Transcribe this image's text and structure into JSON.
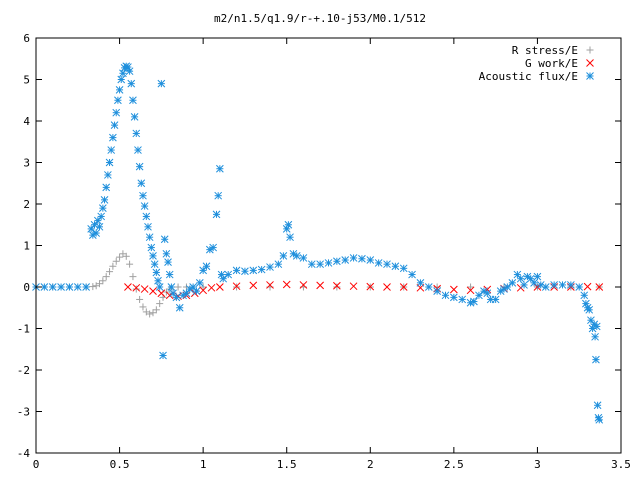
{
  "chart_data": {
    "type": "scatter",
    "title": "m2/n1.5/q1.9/r-+.10-j53/M0.1/512",
    "xlabel": "",
    "ylabel": "",
    "xlim": [
      0,
      3.5
    ],
    "ylim": [
      -4,
      6
    ],
    "x_ticks": [
      "0",
      "0.5",
      "1",
      "1.5",
      "2",
      "2.5",
      "3",
      "3.5"
    ],
    "y_ticks": [
      "-4",
      "-3",
      "-2",
      "-1",
      "0",
      "1",
      "2",
      "3",
      "4",
      "5",
      "6"
    ],
    "grid": false,
    "legend_position": "top-right",
    "series": [
      {
        "name": "R stress/E",
        "marker": "plus",
        "color": "#a0a0a0",
        "points": [
          [
            0.0,
            0.0
          ],
          [
            0.1,
            0.0
          ],
          [
            0.2,
            0.0
          ],
          [
            0.3,
            0.0
          ],
          [
            0.34,
            0.01
          ],
          [
            0.36,
            0.03
          ],
          [
            0.38,
            0.08
          ],
          [
            0.4,
            0.15
          ],
          [
            0.42,
            0.25
          ],
          [
            0.44,
            0.37
          ],
          [
            0.46,
            0.5
          ],
          [
            0.48,
            0.62
          ],
          [
            0.5,
            0.72
          ],
          [
            0.52,
            0.8
          ],
          [
            0.54,
            0.74
          ],
          [
            0.56,
            0.55
          ],
          [
            0.58,
            0.25
          ],
          [
            0.6,
            -0.05
          ],
          [
            0.62,
            -0.3
          ],
          [
            0.64,
            -0.48
          ],
          [
            0.66,
            -0.6
          ],
          [
            0.68,
            -0.65
          ],
          [
            0.7,
            -0.62
          ],
          [
            0.72,
            -0.55
          ],
          [
            0.74,
            -0.4
          ],
          [
            0.76,
            -0.25
          ],
          [
            0.78,
            -0.12
          ],
          [
            0.8,
            -0.05
          ],
          [
            0.85,
            0.0
          ],
          [
            0.9,
            0.0
          ],
          [
            1.0,
            0.0
          ],
          [
            1.2,
            0.0
          ],
          [
            1.4,
            0.0
          ],
          [
            1.6,
            0.0
          ],
          [
            1.8,
            0.0
          ],
          [
            2.0,
            0.0
          ],
          [
            2.2,
            0.0
          ],
          [
            2.4,
            0.0
          ],
          [
            2.6,
            0.0
          ],
          [
            2.8,
            0.0
          ],
          [
            3.0,
            0.0
          ],
          [
            3.2,
            0.0
          ],
          [
            3.37,
            0.0
          ]
        ]
      },
      {
        "name": "G work/E",
        "marker": "cross",
        "color": "#ff0000",
        "points": [
          [
            0.55,
            0.0
          ],
          [
            0.6,
            -0.02
          ],
          [
            0.65,
            -0.05
          ],
          [
            0.7,
            -0.1
          ],
          [
            0.75,
            -0.15
          ],
          [
            0.8,
            -0.2
          ],
          [
            0.85,
            -0.22
          ],
          [
            0.9,
            -0.2
          ],
          [
            0.95,
            -0.15
          ],
          [
            1.0,
            -0.08
          ],
          [
            1.05,
            -0.02
          ],
          [
            1.1,
            0.0
          ],
          [
            1.2,
            0.02
          ],
          [
            1.3,
            0.04
          ],
          [
            1.4,
            0.05
          ],
          [
            1.5,
            0.06
          ],
          [
            1.6,
            0.05
          ],
          [
            1.7,
            0.04
          ],
          [
            1.8,
            0.03
          ],
          [
            1.9,
            0.02
          ],
          [
            2.0,
            0.01
          ],
          [
            2.1,
            0.0
          ],
          [
            2.2,
            0.0
          ],
          [
            2.3,
            -0.02
          ],
          [
            2.4,
            -0.04
          ],
          [
            2.5,
            -0.06
          ],
          [
            2.6,
            -0.08
          ],
          [
            2.7,
            -0.06
          ],
          [
            2.8,
            -0.04
          ],
          [
            2.9,
            -0.02
          ],
          [
            3.0,
            0.0
          ],
          [
            3.1,
            0.0
          ],
          [
            3.2,
            0.0
          ],
          [
            3.3,
            0.01
          ],
          [
            3.37,
            0.0
          ]
        ]
      },
      {
        "name": "Acoustic flux/E",
        "marker": "star",
        "color": "#1e8fdc",
        "points": [
          [
            0.0,
            0.0
          ],
          [
            0.05,
            0.0
          ],
          [
            0.1,
            0.0
          ],
          [
            0.15,
            0.0
          ],
          [
            0.2,
            0.0
          ],
          [
            0.25,
            0.0
          ],
          [
            0.3,
            0.0
          ],
          [
            0.33,
            1.4
          ],
          [
            0.34,
            1.25
          ],
          [
            0.35,
            1.5
          ],
          [
            0.36,
            1.3
          ],
          [
            0.37,
            1.6
          ],
          [
            0.38,
            1.45
          ],
          [
            0.39,
            1.7
          ],
          [
            0.4,
            1.9
          ],
          [
            0.41,
            2.1
          ],
          [
            0.42,
            2.4
          ],
          [
            0.43,
            2.7
          ],
          [
            0.44,
            3.0
          ],
          [
            0.45,
            3.3
          ],
          [
            0.46,
            3.6
          ],
          [
            0.47,
            3.9
          ],
          [
            0.48,
            4.2
          ],
          [
            0.49,
            4.5
          ],
          [
            0.5,
            4.75
          ],
          [
            0.51,
            5.0
          ],
          [
            0.52,
            5.15
          ],
          [
            0.53,
            5.28
          ],
          [
            0.54,
            5.32
          ],
          [
            0.55,
            5.3
          ],
          [
            0.56,
            5.2
          ],
          [
            0.57,
            4.9
          ],
          [
            0.58,
            4.5
          ],
          [
            0.59,
            4.1
          ],
          [
            0.6,
            3.7
          ],
          [
            0.61,
            3.3
          ],
          [
            0.62,
            2.9
          ],
          [
            0.63,
            2.5
          ],
          [
            0.64,
            2.2
          ],
          [
            0.65,
            1.95
          ],
          [
            0.66,
            1.7
          ],
          [
            0.67,
            1.45
          ],
          [
            0.68,
            1.2
          ],
          [
            0.69,
            0.95
          ],
          [
            0.7,
            0.75
          ],
          [
            0.71,
            0.55
          ],
          [
            0.72,
            0.35
          ],
          [
            0.73,
            0.15
          ],
          [
            0.74,
            0.0
          ],
          [
            0.75,
            4.9
          ],
          [
            0.76,
            -1.65
          ],
          [
            0.77,
            1.15
          ],
          [
            0.78,
            0.8
          ],
          [
            0.79,
            0.6
          ],
          [
            0.8,
            0.3
          ],
          [
            0.81,
            0.0
          ],
          [
            0.82,
            -0.15
          ],
          [
            0.84,
            -0.25
          ],
          [
            0.86,
            -0.5
          ],
          [
            0.88,
            -0.2
          ],
          [
            0.9,
            -0.15
          ],
          [
            0.92,
            -0.05
          ],
          [
            0.94,
            0.0
          ],
          [
            0.96,
            -0.1
          ],
          [
            0.98,
            0.1
          ],
          [
            1.0,
            0.4
          ],
          [
            1.02,
            0.5
          ],
          [
            1.04,
            0.9
          ],
          [
            1.06,
            0.95
          ],
          [
            1.08,
            1.75
          ],
          [
            1.09,
            2.2
          ],
          [
            1.1,
            2.85
          ],
          [
            1.11,
            0.3
          ],
          [
            1.12,
            0.2
          ],
          [
            1.15,
            0.3
          ],
          [
            1.2,
            0.4
          ],
          [
            1.25,
            0.38
          ],
          [
            1.3,
            0.4
          ],
          [
            1.35,
            0.42
          ],
          [
            1.4,
            0.48
          ],
          [
            1.45,
            0.55
          ],
          [
            1.48,
            0.75
          ],
          [
            1.5,
            1.4
          ],
          [
            1.51,
            1.5
          ],
          [
            1.52,
            1.2
          ],
          [
            1.54,
            0.8
          ],
          [
            1.56,
            0.75
          ],
          [
            1.6,
            0.7
          ],
          [
            1.65,
            0.55
          ],
          [
            1.7,
            0.55
          ],
          [
            1.75,
            0.58
          ],
          [
            1.8,
            0.62
          ],
          [
            1.85,
            0.65
          ],
          [
            1.9,
            0.7
          ],
          [
            1.95,
            0.68
          ],
          [
            2.0,
            0.65
          ],
          [
            2.05,
            0.58
          ],
          [
            2.1,
            0.55
          ],
          [
            2.15,
            0.5
          ],
          [
            2.2,
            0.45
          ],
          [
            2.25,
            0.3
          ],
          [
            2.3,
            0.1
          ],
          [
            2.35,
            0.0
          ],
          [
            2.4,
            -0.1
          ],
          [
            2.45,
            -0.2
          ],
          [
            2.5,
            -0.25
          ],
          [
            2.55,
            -0.3
          ],
          [
            2.6,
            -0.38
          ],
          [
            2.62,
            -0.35
          ],
          [
            2.65,
            -0.2
          ],
          [
            2.68,
            -0.1
          ],
          [
            2.7,
            -0.15
          ],
          [
            2.72,
            -0.3
          ],
          [
            2.75,
            -0.3
          ],
          [
            2.78,
            -0.1
          ],
          [
            2.8,
            -0.05
          ],
          [
            2.82,
            0.0
          ],
          [
            2.85,
            0.1
          ],
          [
            2.88,
            0.3
          ],
          [
            2.9,
            0.2
          ],
          [
            2.92,
            0.05
          ],
          [
            2.94,
            0.25
          ],
          [
            2.96,
            0.2
          ],
          [
            2.98,
            0.1
          ],
          [
            3.0,
            0.25
          ],
          [
            3.02,
            0.05
          ],
          [
            3.05,
            0.0
          ],
          [
            3.1,
            0.05
          ],
          [
            3.15,
            0.05
          ],
          [
            3.2,
            0.05
          ],
          [
            3.25,
            0.0
          ],
          [
            3.28,
            -0.2
          ],
          [
            3.29,
            -0.4
          ],
          [
            3.3,
            -0.5
          ],
          [
            3.31,
            -0.55
          ],
          [
            3.32,
            -0.8
          ],
          [
            3.33,
            -1.0
          ],
          [
            3.34,
            -0.9
          ],
          [
            3.345,
            -1.2
          ],
          [
            3.35,
            -1.75
          ],
          [
            3.355,
            -0.95
          ],
          [
            3.36,
            -2.85
          ],
          [
            3.365,
            -3.15
          ],
          [
            3.37,
            -3.2
          ]
        ]
      }
    ]
  }
}
